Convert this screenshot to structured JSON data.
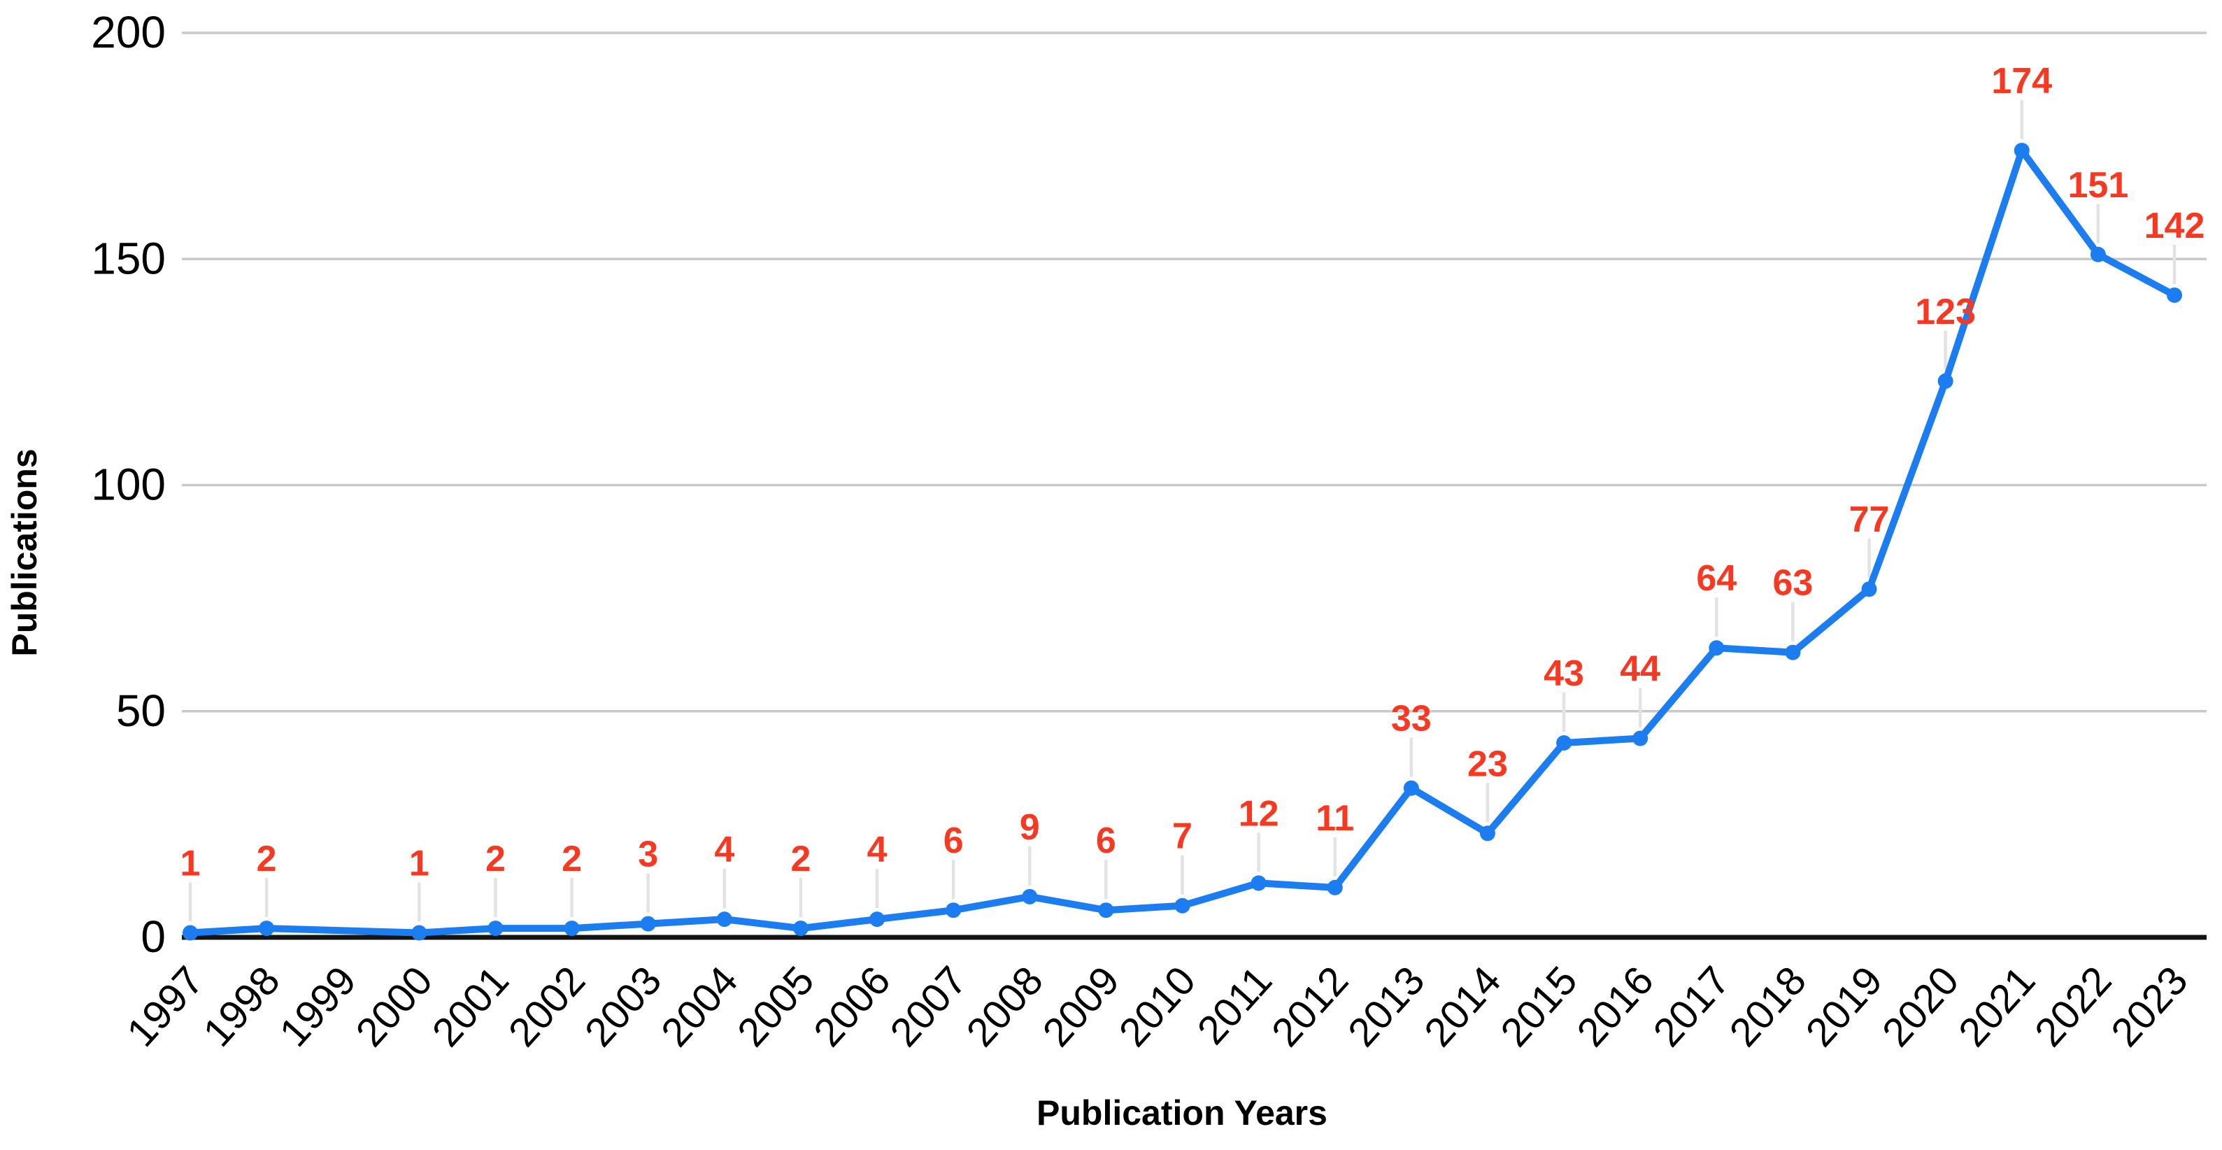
{
  "chart_data": {
    "type": "line",
    "title": "",
    "xlabel": "Publication Years",
    "ylabel": "Publications",
    "x": [
      "1997",
      "1998",
      "1999",
      "2000",
      "2001",
      "2002",
      "2003",
      "2004",
      "2005",
      "2006",
      "2007",
      "2008",
      "2009",
      "2010",
      "2011",
      "2012",
      "2013",
      "2014",
      "2015",
      "2016",
      "2017",
      "2018",
      "2019",
      "2020",
      "2021",
      "2022",
      "2023"
    ],
    "series": [
      {
        "name": "Publications",
        "values": [
          1,
          2,
          null,
          1,
          2,
          2,
          3,
          4,
          2,
          4,
          6,
          9,
          6,
          7,
          12,
          11,
          33,
          23,
          43,
          44,
          64,
          63,
          77,
          123,
          174,
          151,
          142
        ]
      }
    ],
    "point_labels": [
      "1",
      "2",
      "",
      "1",
      "2",
      "2",
      "3",
      "4",
      "2",
      "4",
      "6",
      "9",
      "6",
      "7",
      "12",
      "11",
      "33",
      "23",
      "43",
      "44",
      "64",
      "63",
      "77",
      "123",
      "174",
      "151",
      "142"
    ],
    "ylim": [
      0,
      200
    ],
    "yticks": [
      0,
      50,
      100,
      150,
      200
    ],
    "ytick_labels": [
      "0",
      "50",
      "100",
      "150",
      "200"
    ],
    "grid": "horizontal-gridlines-on",
    "legend": "none",
    "notes": "no data point or label shown for 1999; line connects 1998 directly to 2000",
    "colors": {
      "line": "#1b7df0",
      "marker": "#1b7df0",
      "data_label": "#f93822",
      "gridline": "#c9c9c9",
      "axis_line": "#141414",
      "leader_line": "#e3e3e3",
      "text": "#000000",
      "background": "#ffffff"
    }
  }
}
